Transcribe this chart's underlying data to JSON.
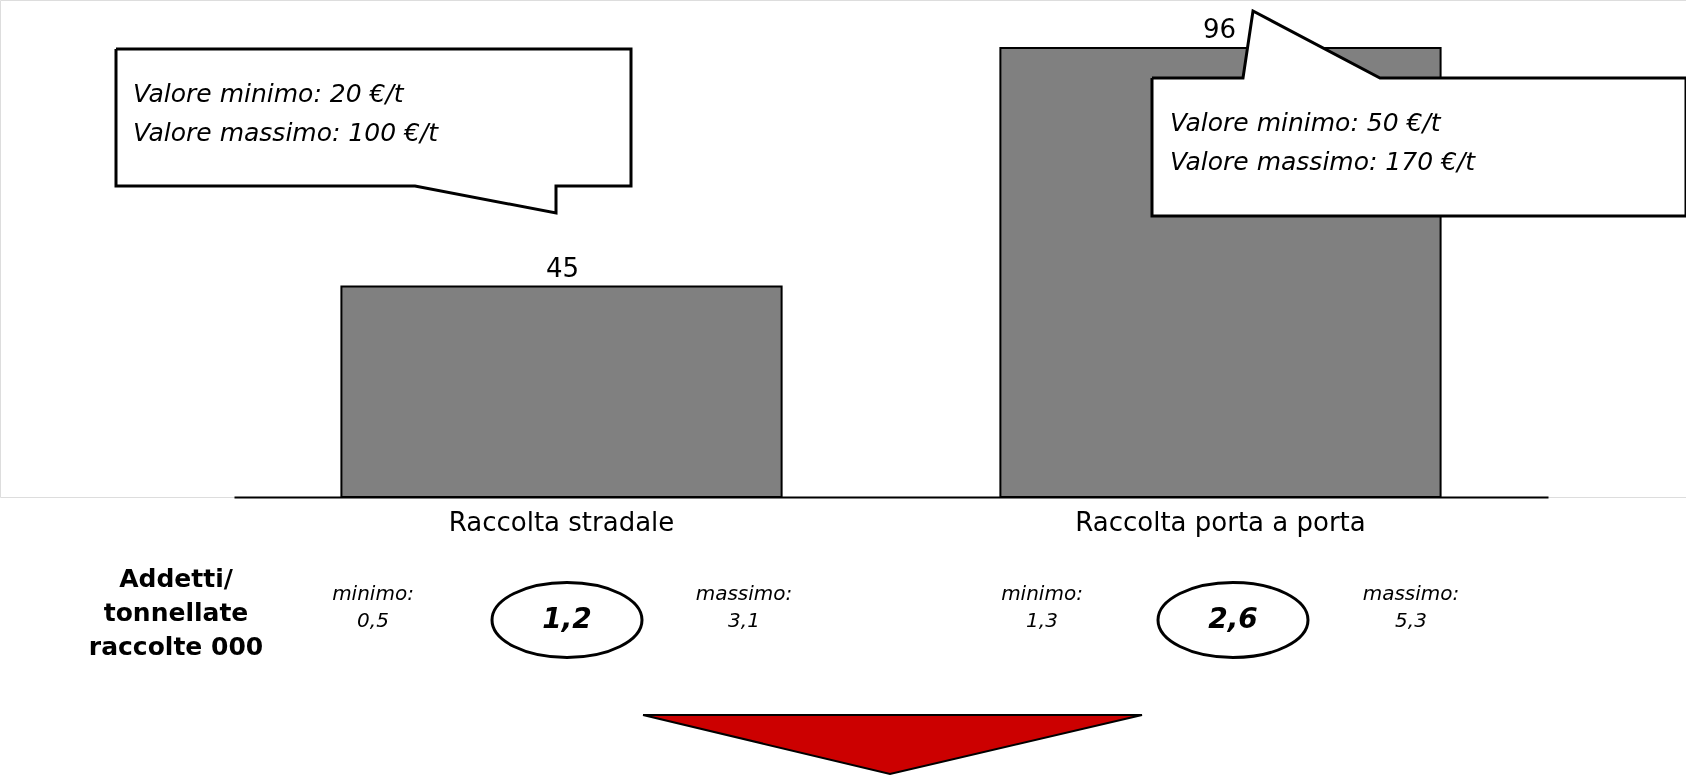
{
  "chart_data": {
    "type": "bar",
    "categories": [
      "Raccolta stradale",
      "Raccolta porta a porta"
    ],
    "values": [
      45,
      96
    ],
    "color": "#808080",
    "data_labels": true,
    "grid": false,
    "annotations": [
      "Valore minimo: 20 €/t",
      "Valore massimo: 100 €/t",
      "Valore minimo: 50 €/t",
      "Valore massimo: 170 €/t",
      "Addetti/\ntonnellate\nraccolte 000",
      "minimo:\n0,5",
      "1,2",
      "massimo:\n3,1",
      "minimo:\n1,3",
      "2,6",
      "massimo:\n5,3"
    ]
  }
}
